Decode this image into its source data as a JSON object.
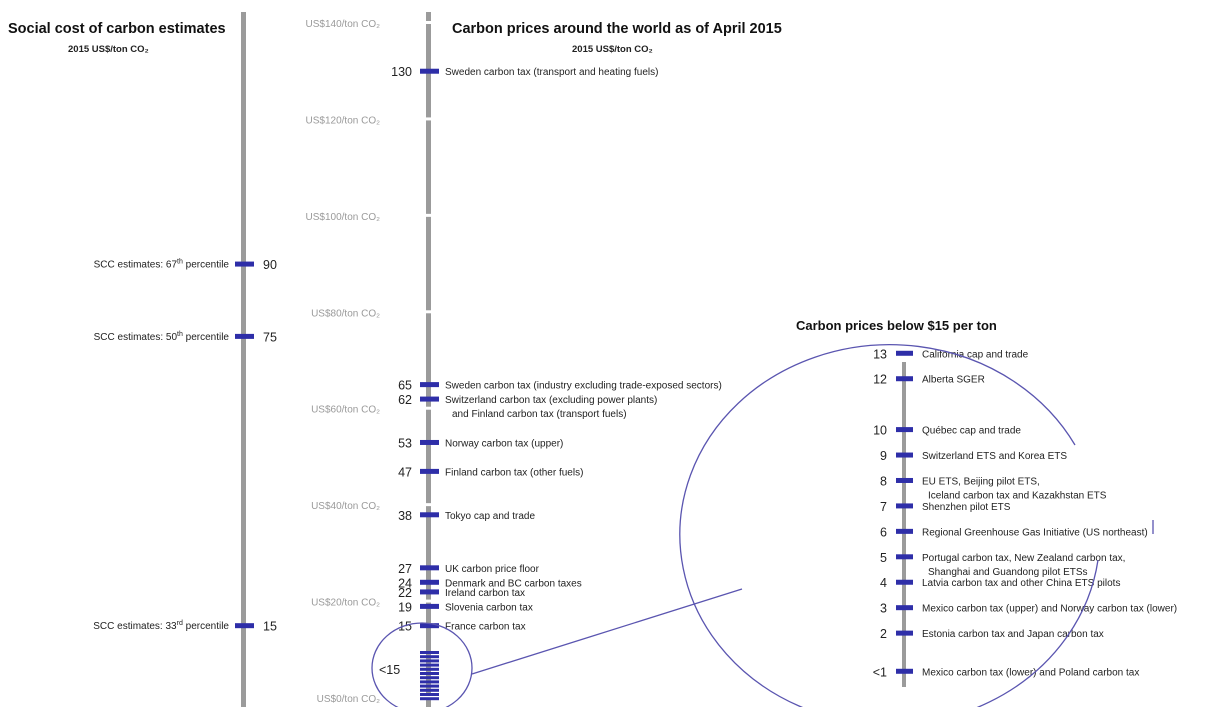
{
  "chart_data": {
    "type": "scatter",
    "left": {
      "title": "Social cost of carbon estimates",
      "subtitle": "2015 US$/ton CO₂",
      "marks": [
        {
          "value": 90,
          "num": "90",
          "label_pre": "SCC estimates: 67",
          "label_sup": "th",
          "label_post": " percentile"
        },
        {
          "value": 75,
          "num": "75",
          "label_pre": "SCC estimates: 50",
          "label_sup": "th",
          "label_post": " percentile"
        },
        {
          "value": 15,
          "num": "15",
          "label_pre": "SCC estimates: 33",
          "label_sup": "rd",
          "label_post": " percentile"
        }
      ]
    },
    "axis": {
      "unit": "ton CO₂",
      "ticks": [
        {
          "value": 140,
          "label": "US$140/ton CO₂"
        },
        {
          "value": 120,
          "label": "US$120/ton CO₂"
        },
        {
          "value": 100,
          "label": "US$100/ton CO₂"
        },
        {
          "value": 80,
          "label": "US$80/ton CO₂"
        },
        {
          "value": 60,
          "label": "US$60/ton CO₂"
        },
        {
          "value": 40,
          "label": "US$40/ton CO₂"
        },
        {
          "value": 20,
          "label": "US$20/ton CO₂"
        },
        {
          "value": 0,
          "label": "US$0/ton CO₂"
        }
      ],
      "ylim": [
        0,
        142
      ]
    },
    "main": {
      "title": "Carbon prices around the world as of April 2015",
      "subtitle": "2015 US$/ton CO₂",
      "marks": [
        {
          "value": 130,
          "num": "130",
          "label": "Sweden carbon tax (transport and heating fuels)"
        },
        {
          "value": 65,
          "num": "65",
          "label": "Sweden carbon tax (industry excluding trade-exposed sectors)"
        },
        {
          "value": 62,
          "num": "62",
          "label": "Switzerland carbon tax (excluding power plants)",
          "label2": "and Finland carbon tax (transport fuels)"
        },
        {
          "value": 53,
          "num": "53",
          "label": "Norway carbon tax (upper)"
        },
        {
          "value": 47,
          "num": "47",
          "label": "Finland carbon tax (other fuels)"
        },
        {
          "value": 38,
          "num": "38",
          "label": "Tokyo cap and trade"
        },
        {
          "value": 27,
          "num": "27",
          "label": "UK carbon price floor"
        },
        {
          "value": 24,
          "num": "24",
          "label": "Denmark and BC carbon taxes"
        },
        {
          "value": 22,
          "num": "22",
          "label": "Ireland carbon tax"
        },
        {
          "value": 19,
          "num": "19",
          "label": "Slovenia carbon tax"
        },
        {
          "value": 15,
          "num": "15",
          "label": "France carbon tax"
        }
      ],
      "below15_label": "<15"
    },
    "inset": {
      "title": "Carbon prices below $15 per ton",
      "marks": [
        {
          "value": 13,
          "num": "13",
          "label": "California cap and trade"
        },
        {
          "value": 12,
          "num": "12",
          "label": "Alberta SGER"
        },
        {
          "value": 10,
          "num": "10",
          "label": "Québec cap and trade"
        },
        {
          "value": 9,
          "num": "9",
          "label": "Switzerland ETS and Korea ETS"
        },
        {
          "value": 8,
          "num": "8",
          "label": "EU ETS, Beijing pilot ETS,",
          "label2": "Iceland carbon tax and Kazakhstan ETS"
        },
        {
          "value": 7,
          "num": "7",
          "label": "Shenzhen pilot ETS"
        },
        {
          "value": 6,
          "num": "6",
          "label": "Regional Greenhouse Gas Initiative (US northeast)"
        },
        {
          "value": 5,
          "num": "5",
          "label": "Portugal carbon tax, New Zealand carbon tax,",
          "label2": "Shanghai and Guandong pilot ETSs"
        },
        {
          "value": 4,
          "num": "4",
          "label": "Latvia carbon tax and other China ETS pilots"
        },
        {
          "value": 3,
          "num": "3",
          "label": "Mexico carbon tax (upper) and Norway carbon tax (lower)"
        },
        {
          "value": 2,
          "num": "2",
          "label": "Estonia carbon tax and Japan carbon tax"
        },
        {
          "value": 0.5,
          "num": "<1",
          "label": "Mexico carbon tax (lower)  and Poland carbon tax"
        }
      ]
    },
    "colors": {
      "mark": "#2e2ea8",
      "axis": "#9b9b9b",
      "circle": "#5a55b0",
      "tick_text": "#9a9a9a"
    }
  }
}
